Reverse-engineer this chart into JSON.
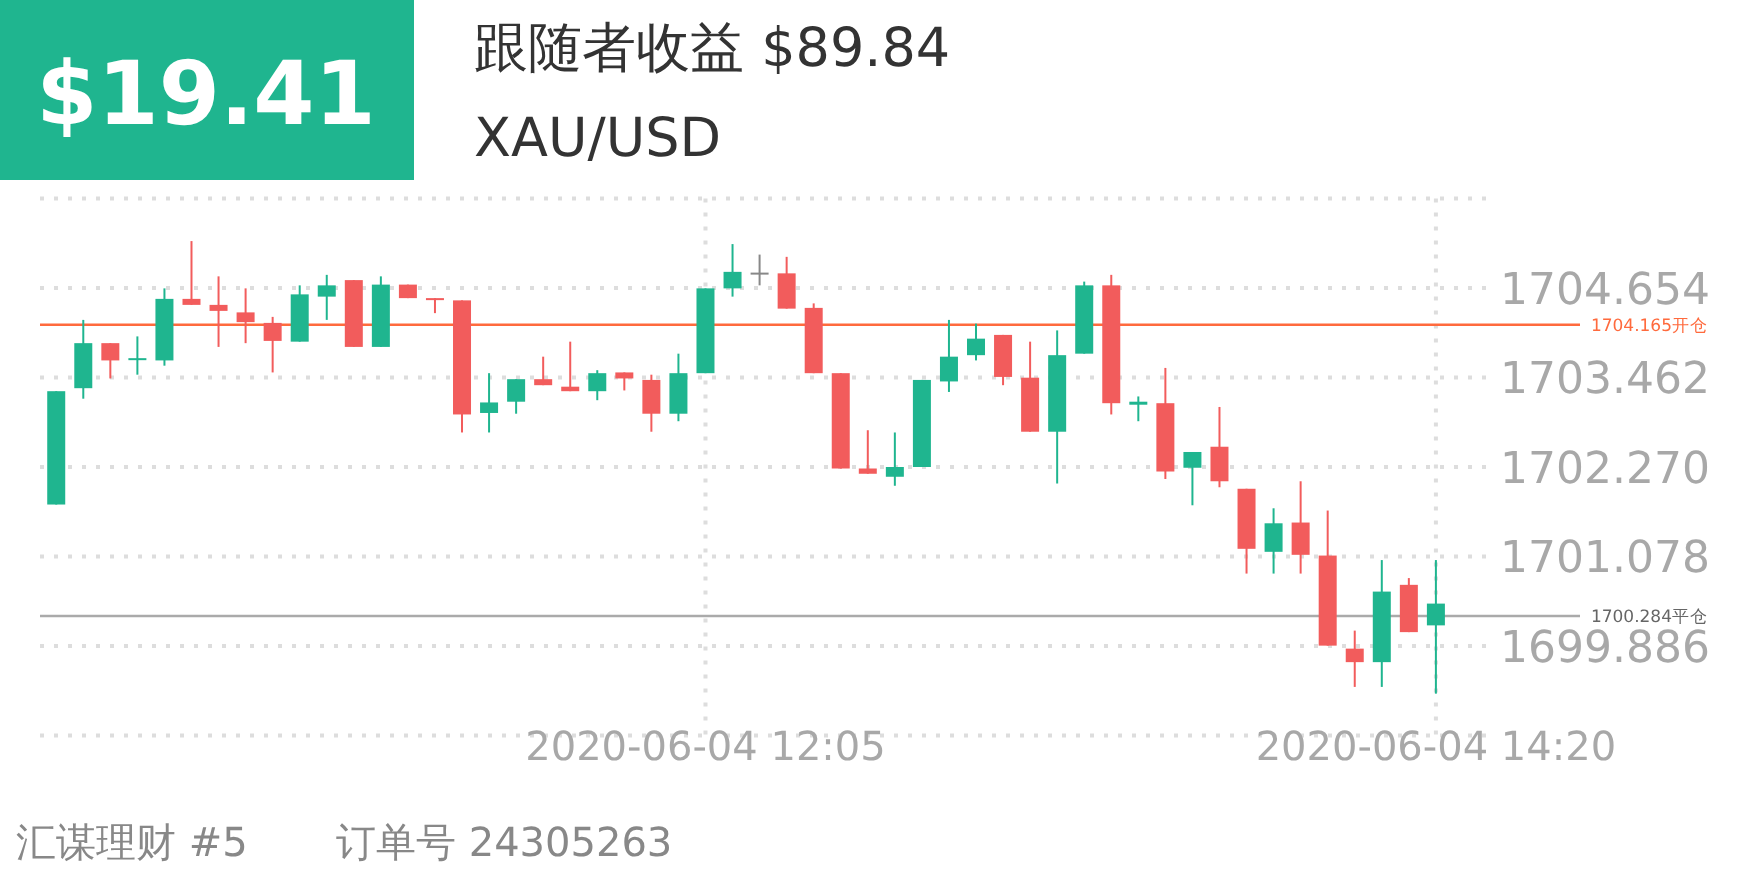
{
  "chart_data": {
    "type": "candlestick",
    "title": "XAU/USD",
    "annotations": [
      "$19.41",
      "跟随者收益 $89.84",
      "汇谋理财 #5",
      "订单号 24305263"
    ],
    "x": [
      "2020-06-04T10:05",
      "2020-06-04T10:10",
      "2020-06-04T10:15",
      "2020-06-04T10:20",
      "2020-06-04T10:25",
      "2020-06-04T10:30",
      "2020-06-04T10:35",
      "2020-06-04T10:40",
      "2020-06-04T10:45",
      "2020-06-04T10:50",
      "2020-06-04T10:55",
      "2020-06-04T11:00",
      "2020-06-04T11:05",
      "2020-06-04T11:10",
      "2020-06-04T11:15",
      "2020-06-04T11:20",
      "2020-06-04T11:25",
      "2020-06-04T11:30",
      "2020-06-04T11:35",
      "2020-06-04T11:40",
      "2020-06-04T11:45",
      "2020-06-04T11:50",
      "2020-06-04T11:55",
      "2020-06-04T12:00",
      "2020-06-04T12:05",
      "2020-06-04T12:10",
      "2020-06-04T12:15",
      "2020-06-04T12:20",
      "2020-06-04T12:25",
      "2020-06-04T12:30",
      "2020-06-04T12:35",
      "2020-06-04T12:40",
      "2020-06-04T12:45",
      "2020-06-04T12:50",
      "2020-06-04T12:55",
      "2020-06-04T13:00",
      "2020-06-04T13:05",
      "2020-06-04T13:10",
      "2020-06-04T13:15",
      "2020-06-04T13:20",
      "2020-06-04T13:25",
      "2020-06-04T13:30",
      "2020-06-04T13:35",
      "2020-06-04T13:40",
      "2020-06-04T13:45",
      "2020-06-04T13:50",
      "2020-06-04T13:55",
      "2020-06-04T14:00",
      "2020-06-04T14:05",
      "2020-06-04T14:10",
      "2020-06-04T14:15",
      "2020-06-04T14:20"
    ],
    "ohlc": [
      [
        1701.77,
        1703.28,
        1701.77,
        1703.28
      ],
      [
        1703.32,
        1704.23,
        1703.18,
        1703.92
      ],
      [
        1703.92,
        1703.92,
        1703.45,
        1703.69
      ],
      [
        1703.7,
        1704.01,
        1703.5,
        1703.72
      ],
      [
        1703.69,
        1704.65,
        1703.62,
        1704.51
      ],
      [
        1704.51,
        1705.28,
        1704.43,
        1704.43
      ],
      [
        1704.43,
        1704.81,
        1703.87,
        1704.35
      ],
      [
        1704.33,
        1704.65,
        1703.92,
        1704.2
      ],
      [
        1704.19,
        1704.27,
        1703.53,
        1703.95
      ],
      [
        1703.94,
        1704.69,
        1703.94,
        1704.57
      ],
      [
        1704.54,
        1704.83,
        1704.23,
        1704.69
      ],
      [
        1704.76,
        1704.76,
        1703.87,
        1703.87
      ],
      [
        1703.87,
        1704.81,
        1703.87,
        1704.7
      ],
      [
        1704.7,
        1704.7,
        1704.52,
        1704.52
      ],
      [
        1704.52,
        1704.52,
        1704.32,
        1704.5
      ],
      [
        1704.49,
        1704.49,
        1702.73,
        1702.97
      ],
      [
        1702.99,
        1703.52,
        1702.73,
        1703.13
      ],
      [
        1703.14,
        1703.44,
        1702.98,
        1703.44
      ],
      [
        1703.44,
        1703.74,
        1703.36,
        1703.36
      ],
      [
        1703.34,
        1703.94,
        1703.28,
        1703.28
      ],
      [
        1703.28,
        1703.56,
        1703.16,
        1703.52
      ],
      [
        1703.53,
        1703.53,
        1703.29,
        1703.45
      ],
      [
        1703.43,
        1703.5,
        1702.74,
        1702.98
      ],
      [
        1702.98,
        1703.78,
        1702.88,
        1703.52
      ],
      [
        1703.52,
        1704.65,
        1703.52,
        1704.65
      ],
      [
        1704.65,
        1705.24,
        1704.54,
        1704.87
      ],
      [
        1704.84,
        1705.1,
        1704.69,
        1704.86
      ],
      [
        1704.85,
        1705.07,
        1704.38,
        1704.38
      ],
      [
        1704.39,
        1704.45,
        1703.52,
        1703.52
      ],
      [
        1703.52,
        1703.52,
        1702.25,
        1702.25
      ],
      [
        1702.25,
        1702.76,
        1702.18,
        1702.18
      ],
      [
        1702.14,
        1702.73,
        1702.02,
        1702.27
      ],
      [
        1702.27,
        1703.43,
        1702.27,
        1703.43
      ],
      [
        1703.41,
        1704.23,
        1703.27,
        1703.74
      ],
      [
        1703.76,
        1704.18,
        1703.69,
        1703.98
      ],
      [
        1704.03,
        1704.03,
        1703.36,
        1703.47
      ],
      [
        1703.46,
        1703.94,
        1702.74,
        1702.74
      ],
      [
        1702.74,
        1704.09,
        1702.05,
        1703.76
      ],
      [
        1703.78,
        1704.74,
        1703.78,
        1704.69
      ],
      [
        1704.69,
        1704.83,
        1702.97,
        1703.12
      ],
      [
        1703.1,
        1703.21,
        1702.88,
        1703.14
      ],
      [
        1703.12,
        1703.59,
        1702.11,
        1702.21
      ],
      [
        1702.26,
        1702.47,
        1701.76,
        1702.47
      ],
      [
        1702.54,
        1703.07,
        1702,
        1702.08
      ],
      [
        1701.98,
        1701.98,
        1700.85,
        1701.18
      ],
      [
        1701.14,
        1701.72,
        1700.85,
        1701.52
      ],
      [
        1701.53,
        1702.08,
        1700.85,
        1701.1
      ],
      [
        1701.09,
        1701.69,
        1699.89,
        1699.89
      ],
      [
        1699.85,
        1700.09,
        1699.34,
        1699.67
      ],
      [
        1699.67,
        1701.03,
        1699.34,
        1700.61
      ],
      [
        1700.7,
        1700.79,
        1700.07,
        1700.07
      ],
      [
        1700.16,
        1701.03,
        1699.25,
        1700.45
      ]
    ],
    "colors": [
      "#1fb58f",
      "#1fb58f",
      "#f25c5c",
      "#1fb58f",
      "#1fb58f",
      "#f25c5c",
      "#f25c5c",
      "#f25c5c",
      "#f25c5c",
      "#1fb58f",
      "#1fb58f",
      "#f25c5c",
      "#1fb58f",
      "#f25c5c",
      "#f25c5c",
      "#f25c5c",
      "#1fb58f",
      "#1fb58f",
      "#f25c5c",
      "#f25c5c",
      "#1fb58f",
      "#f25c5c",
      "#f25c5c",
      "#1fb58f",
      "#1fb58f",
      "#1fb58f",
      "#888888",
      "#f25c5c",
      "#f25c5c",
      "#f25c5c",
      "#f25c5c",
      "#1fb58f",
      "#1fb58f",
      "#1fb58f",
      "#1fb58f",
      "#f25c5c",
      "#f25c5c",
      "#1fb58f",
      "#1fb58f",
      "#f25c5c",
      "#1fb58f",
      "#f25c5c",
      "#1fb58f",
      "#f25c5c",
      "#f25c5c",
      "#1fb58f",
      "#f25c5c",
      "#f25c5c",
      "#f25c5c",
      "#1fb58f",
      "#f25c5c",
      "#1fb58f"
    ],
    "xlim": [
      "2020-06-04T10:02",
      "2020-06-04T14:30"
    ],
    "xticks": [
      {
        "value": "2020-06-04T12:05",
        "label": "2020-06-04 12:05"
      },
      {
        "value": "2020-06-04T14:20",
        "label": "2020-06-04 14:20"
      }
    ],
    "ylim": [
      1698.694,
      1705.846
    ],
    "yticks": [
      {
        "value": 1698.694,
        "label": null
      },
      1699.886,
      1701.078,
      {
        "value": 1702.27,
        "label": "1702.270"
      },
      1703.462,
      1704.654,
      {
        "value": 1705.846,
        "label": null
      }
    ],
    "grid": true,
    "ref_lines": [
      {
        "axis": "y",
        "value": 1704.165,
        "label": "1704.165开仓",
        "color": "#ff6a3d"
      },
      {
        "axis": "y",
        "value": 1700.284,
        "label": "1700.284平仓",
        "color": "#aaaaaa"
      }
    ]
  }
}
